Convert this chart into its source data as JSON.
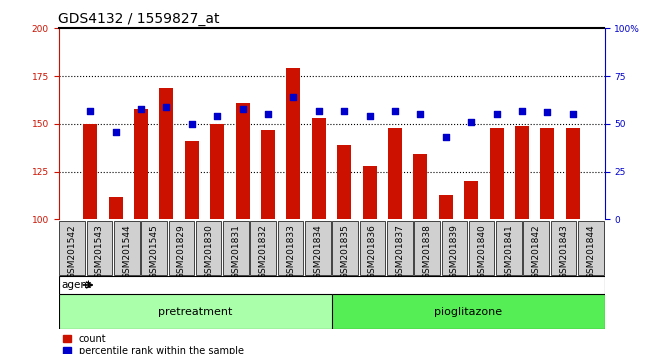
{
  "title": "GDS4132 / 1559827_at",
  "categories": [
    "GSM201542",
    "GSM201543",
    "GSM201544",
    "GSM201545",
    "GSM201829",
    "GSM201830",
    "GSM201831",
    "GSM201832",
    "GSM201833",
    "GSM201834",
    "GSM201835",
    "GSM201836",
    "GSM201837",
    "GSM201838",
    "GSM201839",
    "GSM201840",
    "GSM201841",
    "GSM201842",
    "GSM201843",
    "GSM201844"
  ],
  "counts": [
    150,
    112,
    158,
    169,
    141,
    150,
    161,
    147,
    179,
    153,
    139,
    128,
    148,
    134,
    113,
    120,
    148,
    149,
    148,
    148
  ],
  "percentiles": [
    57,
    46,
    58,
    59,
    50,
    54,
    58,
    55,
    64,
    57,
    57,
    54,
    57,
    55,
    43,
    51,
    55,
    57,
    56,
    55
  ],
  "left_ylim": [
    100,
    200
  ],
  "right_ylim": [
    0,
    100
  ],
  "left_yticks": [
    100,
    125,
    150,
    175,
    200
  ],
  "right_yticks": [
    0,
    25,
    50,
    75,
    100
  ],
  "bar_color": "#cc1100",
  "dot_color": "#0000cc",
  "n_pretreatment": 10,
  "n_pioglitazone": 10,
  "pretreatment_color": "#aaffaa",
  "pioglitazone_color": "#55ee55",
  "agent_label": "agent",
  "pretreatment_label": "pretreatment",
  "pioglitazone_label": "pioglitazone",
  "legend_count_label": "count",
  "legend_pct_label": "percentile rank within the sample",
  "title_fontsize": 10,
  "tick_fontsize": 6.5,
  "label_fontsize": 8,
  "grid_dotted_at": [
    125,
    150,
    175
  ]
}
